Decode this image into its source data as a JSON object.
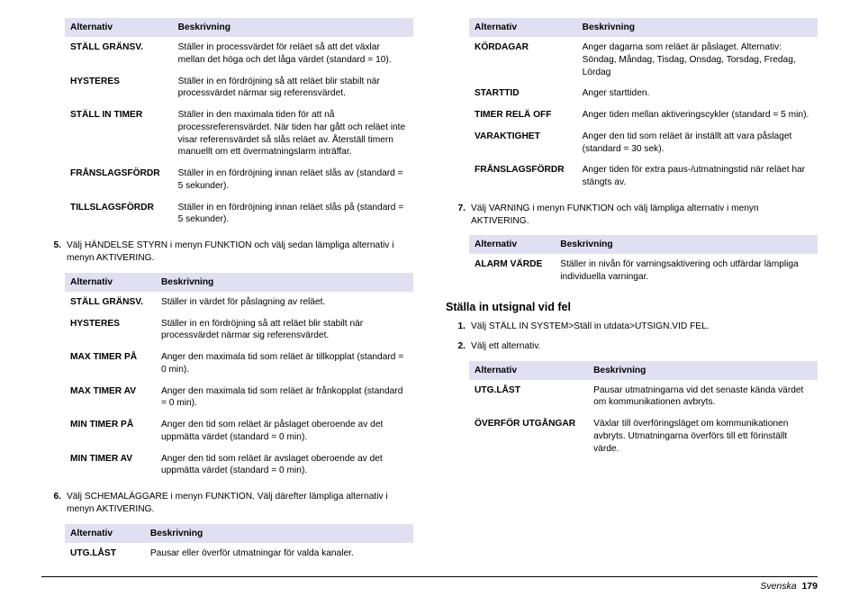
{
  "headers": {
    "alt": "Alternativ",
    "desc": "Beskrivning"
  },
  "t1": [
    {
      "k": "STÄLL GRÄNSV.",
      "v": "Ställer in processvärdet för reläet så att det växlar mellan det höga och det låga värdet (standard = 10)."
    },
    {
      "k": "HYSTERES",
      "v": "Ställer in en fördröjning så att reläet blir stabilt när processvärdet närmar sig referensvärdet."
    },
    {
      "k": "STÄLL IN TIMER",
      "v": "Ställer in den maximala tiden för att nå processreferensvärdet. När tiden har gått och reläet inte visar referensvärdet så slås reläet av. Återställ timern manuellt om ett övermatningslarm inträffar."
    },
    {
      "k": "FRÅNSLAGSFÖRDR",
      "v": "Ställer in en fördröjning innan reläet slås av (standard = 5 sekunder)."
    },
    {
      "k": "TILLSLAGSFÖRDR",
      "v": "Ställer in en fördröjning innan reläet slås på (standard = 5 sekunder)."
    }
  ],
  "s5": "Välj HÄNDELSE STYRN i menyn FUNKTION och välj sedan lämpliga alternativ i menyn AKTIVERING.",
  "t2": [
    {
      "k": "STÄLL GRÄNSV.",
      "v": "Ställer in värdet för påslagning av reläet."
    },
    {
      "k": "HYSTERES",
      "v": "Ställer in en fördröjning så att reläet blir stabilt när processvärdet närmar sig referensvärdet."
    },
    {
      "k": "MAX TIMER PÅ",
      "v": "Anger den maximala tid som reläet är tillkopplat (standard = 0 min)."
    },
    {
      "k": "MAX TIMER AV",
      "v": "Anger den maximala tid som reläet är frånkopplat (standard = 0 min)."
    },
    {
      "k": "MIN TIMER PÅ",
      "v": "Anger den tid som reläet är påslaget oberoende av det uppmätta värdet (standard = 0 min)."
    },
    {
      "k": "MIN TIMER AV",
      "v": "Anger den tid som reläet är avslaget oberoende av det uppmätta värdet (standard = 0 min)."
    }
  ],
  "s6": "Välj SCHEMALÄGGARE i menyn FUNKTION. Välj därefter lämpliga alternativ i menyn AKTIVERING.",
  "t3": [
    {
      "k": "UTG.LÅST",
      "v": "Pausar eller överför utmatningar för valda kanaler."
    }
  ],
  "t4": [
    {
      "k": "KÖRDAGAR",
      "v": "Anger dagarna som reläet är påslaget. Alternativ: Söndag, Måndag, Tisdag, Onsdag, Torsdag, Fredag, Lördag"
    },
    {
      "k": "STARTTID",
      "v": "Anger starttiden."
    },
    {
      "k": "TIMER RELÄ OFF",
      "v": "Anger tiden mellan aktiveringscykler (standard = 5 min)."
    },
    {
      "k": "VARAKTIGHET",
      "v": "Anger den tid som reläet är inställt att vara påslaget (standard = 30 sek)."
    },
    {
      "k": "FRÅNSLAGSFÖRDR",
      "v": "Anger tiden för extra paus-/utmatningstid när reläet har stängts av."
    }
  ],
  "s7": "Välj VARNING i menyn FUNKTION och välj lämpliga alternativ i menyn AKTIVERING.",
  "t5": [
    {
      "k": "ALARM VÄRDE",
      "v": "Ställer in nivån för varningsaktivering och utfärdar lämpliga individuella varningar."
    }
  ],
  "section2": "Ställa in utsignal vid fel",
  "s2_1": "Välj STÄLL IN SYSTEM>Ställ in utdata>UTSIGN.VID FEL.",
  "s2_2": "Välj ett alternativ.",
  "t6": [
    {
      "k": "UTG.LÅST",
      "v": "Pausar utmatningarna vid det senaste kända värdet om kommunikationen avbryts."
    },
    {
      "k": "ÖVERFÖR UTGÅNGAR",
      "v": "Växlar till överföringsläget om kommunikationen avbryts. Utmatningarna överförs till ett förinställt värde."
    }
  ],
  "footer": {
    "lang": "Svenska",
    "page": "179"
  }
}
